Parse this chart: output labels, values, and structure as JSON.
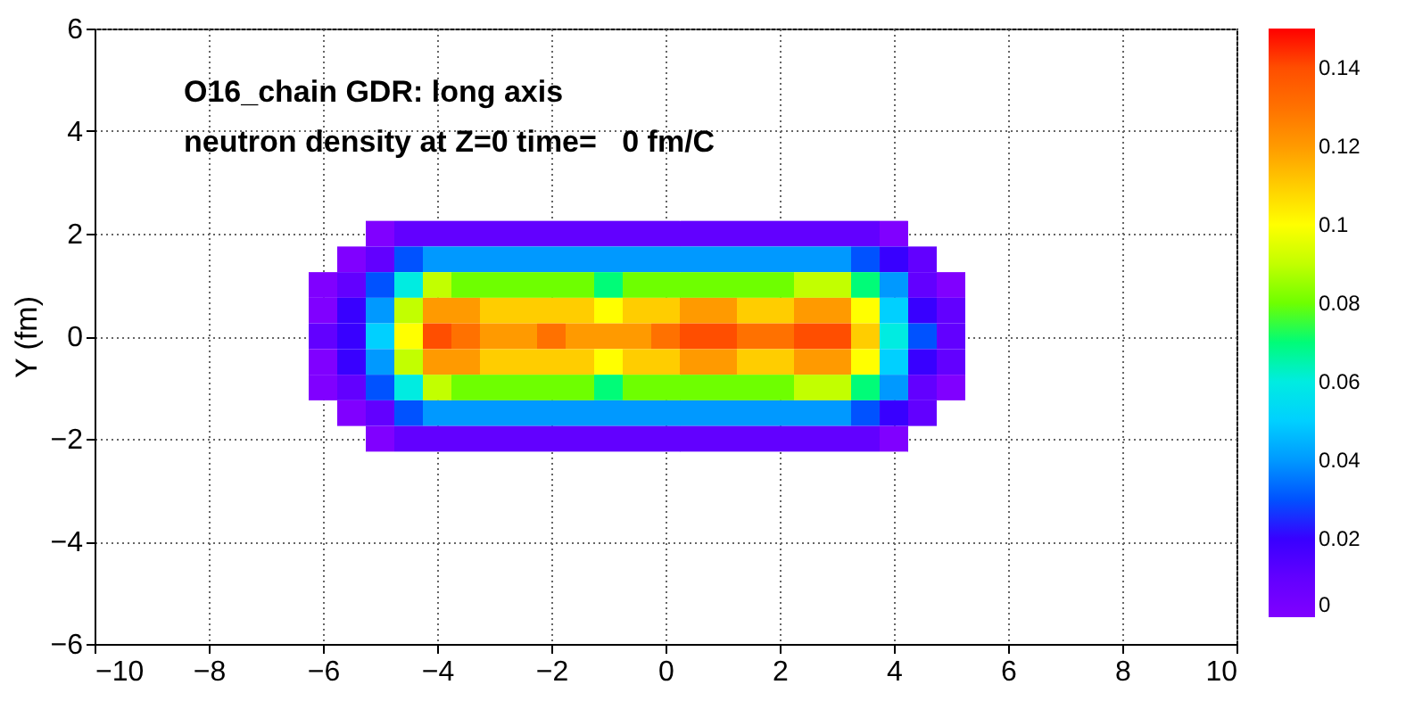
{
  "chart_data": {
    "type": "heatmap",
    "annotations": [
      "O16_chain GDR: long axis",
      "neutron density at Z=0 time=   0 fm/C"
    ],
    "ylabel": "Y (fm)",
    "x": [
      -6,
      -5.5,
      -5,
      -4.5,
      -4,
      -3.5,
      -3,
      -2.5,
      -2,
      -1.5,
      -1,
      -0.5,
      0,
      0.5,
      1,
      1.5,
      2,
      2.5,
      3,
      3.5,
      4,
      4.5,
      5
    ],
    "y": [
      2,
      1.5,
      1,
      0.5,
      0,
      -0.5,
      -1,
      -1.5,
      -2
    ],
    "cells": [
      [
        null,
        null,
        0,
        0.01,
        0.01,
        0.01,
        0.01,
        0.01,
        0.01,
        0.01,
        0.01,
        0.01,
        0.01,
        0.01,
        0.01,
        0.01,
        0.01,
        0.01,
        0.01,
        0.01,
        0,
        null,
        null
      ],
      [
        null,
        0,
        0.01,
        0.03,
        0.04,
        0.04,
        0.04,
        0.04,
        0.04,
        0.04,
        0.04,
        0.04,
        0.04,
        0.04,
        0.04,
        0.04,
        0.04,
        0.04,
        0.04,
        0.03,
        0.02,
        0.01,
        null
      ],
      [
        0,
        0.01,
        0.03,
        0.06,
        0.09,
        0.08,
        0.08,
        0.08,
        0.08,
        0.08,
        0.07,
        0.08,
        0.08,
        0.08,
        0.08,
        0.08,
        0.08,
        0.09,
        0.09,
        0.07,
        0.04,
        0.01,
        0
      ],
      [
        0,
        0.02,
        0.04,
        0.09,
        0.12,
        0.12,
        0.11,
        0.11,
        0.11,
        0.11,
        0.1,
        0.11,
        0.11,
        0.12,
        0.12,
        0.11,
        0.11,
        0.12,
        0.12,
        0.1,
        0.05,
        0.02,
        0.01
      ],
      [
        0.01,
        0.02,
        0.05,
        0.1,
        0.14,
        0.13,
        0.12,
        0.12,
        0.13,
        0.12,
        0.12,
        0.12,
        0.13,
        0.14,
        0.14,
        0.13,
        0.13,
        0.14,
        0.14,
        0.11,
        0.06,
        0.03,
        0.01
      ],
      [
        0,
        0.02,
        0.04,
        0.09,
        0.12,
        0.12,
        0.11,
        0.11,
        0.11,
        0.11,
        0.1,
        0.11,
        0.11,
        0.12,
        0.12,
        0.11,
        0.11,
        0.12,
        0.12,
        0.1,
        0.05,
        0.02,
        0.01
      ],
      [
        0,
        0.01,
        0.03,
        0.06,
        0.09,
        0.08,
        0.08,
        0.08,
        0.08,
        0.08,
        0.07,
        0.08,
        0.08,
        0.08,
        0.08,
        0.08,
        0.08,
        0.09,
        0.09,
        0.07,
        0.04,
        0.01,
        0
      ],
      [
        null,
        0,
        0.01,
        0.03,
        0.04,
        0.04,
        0.04,
        0.04,
        0.04,
        0.04,
        0.04,
        0.04,
        0.04,
        0.04,
        0.04,
        0.04,
        0.04,
        0.04,
        0.04,
        0.03,
        0.02,
        0.01,
        null
      ],
      [
        null,
        null,
        0,
        0.01,
        0.01,
        0.01,
        0.01,
        0.01,
        0.01,
        0.01,
        0.01,
        0.01,
        0.01,
        0.01,
        0.01,
        0.01,
        0.01,
        0.01,
        0.01,
        0.01,
        0,
        null,
        null
      ]
    ],
    "xlim": [
      -10,
      10
    ],
    "xticks": [
      -10,
      -8,
      -6,
      -4,
      -2,
      0,
      2,
      4,
      6,
      8,
      10
    ],
    "ylim": [
      -6,
      6
    ],
    "yticks": [
      -6,
      -4,
      -2,
      0,
      2,
      4,
      6
    ],
    "clim": [
      0,
      0.15
    ],
    "cticks": [
      0,
      0.02,
      0.04,
      0.06,
      0.08,
      0.1,
      0.12,
      0.14
    ],
    "grid": true
  }
}
